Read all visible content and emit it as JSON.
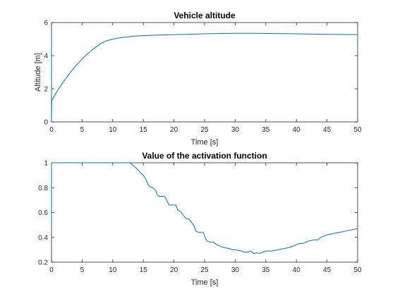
{
  "chart_data": [
    {
      "type": "line",
      "title": "Vehicle altitude",
      "xlabel": "Time [s]",
      "ylabel": "Altitude [m]",
      "xlim": [
        0,
        50
      ],
      "ylim": [
        0,
        6
      ],
      "xticks": [
        0,
        5,
        10,
        15,
        20,
        25,
        30,
        35,
        40,
        45,
        50
      ],
      "yticks": [
        0,
        2,
        4,
        6
      ],
      "grid": false,
      "series": [
        {
          "color": "#0072BD",
          "x": [
            0,
            0,
            0.05,
            1,
            2,
            3,
            4,
            5,
            6,
            7,
            8,
            9,
            10,
            11,
            12,
            13,
            14,
            15,
            17,
            20,
            23,
            25,
            28,
            30,
            33,
            35,
            38,
            40,
            45,
            50
          ],
          "y": [
            5.3,
            0.05,
            1.3,
            1.9,
            2.45,
            2.95,
            3.4,
            3.8,
            4.15,
            4.45,
            4.72,
            4.9,
            5.0,
            5.07,
            5.12,
            5.16,
            5.19,
            5.21,
            5.24,
            5.27,
            5.3,
            5.32,
            5.34,
            5.35,
            5.35,
            5.34,
            5.33,
            5.32,
            5.29,
            5.27
          ]
        }
      ]
    },
    {
      "type": "line",
      "title": "Value of the activation function",
      "xlabel": "Time [s]",
      "ylabel": "",
      "xlim": [
        0,
        50
      ],
      "ylim": [
        0.2,
        1
      ],
      "xticks": [
        0,
        5,
        10,
        15,
        20,
        25,
        30,
        35,
        40,
        45,
        50
      ],
      "yticks": [
        0.2,
        0.4,
        0.6,
        0.8,
        1
      ],
      "grid": false,
      "series": [
        {
          "color": "#0072BD",
          "x": [
            0,
            0,
            0.05,
            12.8,
            13.3,
            14,
            14.5,
            15,
            15.4,
            15.7,
            16,
            16.5,
            17,
            17.3,
            17.6,
            18.5,
            18.8,
            19.2,
            20.3,
            20.6,
            21,
            22,
            22.3,
            22.6,
            23.3,
            23.6,
            24,
            24.8,
            25.1,
            25.4,
            26,
            26.5,
            27,
            27.5,
            28,
            29,
            29.5,
            30,
            31,
            31.5,
            32,
            32.5,
            33,
            33.5,
            34,
            34.5,
            35,
            36,
            37,
            38,
            39,
            40,
            40.5,
            41,
            42,
            43,
            43.5,
            44,
            45,
            46,
            47,
            48,
            49,
            50
          ],
          "y": [
            0.48,
            1.0,
            1.0,
            1.0,
            0.98,
            0.95,
            0.92,
            0.9,
            0.87,
            0.83,
            0.81,
            0.8,
            0.78,
            0.74,
            0.73,
            0.73,
            0.7,
            0.66,
            0.66,
            0.62,
            0.61,
            0.55,
            0.55,
            0.54,
            0.49,
            0.45,
            0.44,
            0.44,
            0.4,
            0.37,
            0.36,
            0.36,
            0.34,
            0.33,
            0.32,
            0.31,
            0.3,
            0.3,
            0.29,
            0.28,
            0.28,
            0.29,
            0.27,
            0.275,
            0.27,
            0.28,
            0.29,
            0.29,
            0.3,
            0.31,
            0.32,
            0.34,
            0.35,
            0.35,
            0.37,
            0.38,
            0.38,
            0.4,
            0.42,
            0.43,
            0.44,
            0.45,
            0.46,
            0.47
          ]
        }
      ]
    }
  ]
}
